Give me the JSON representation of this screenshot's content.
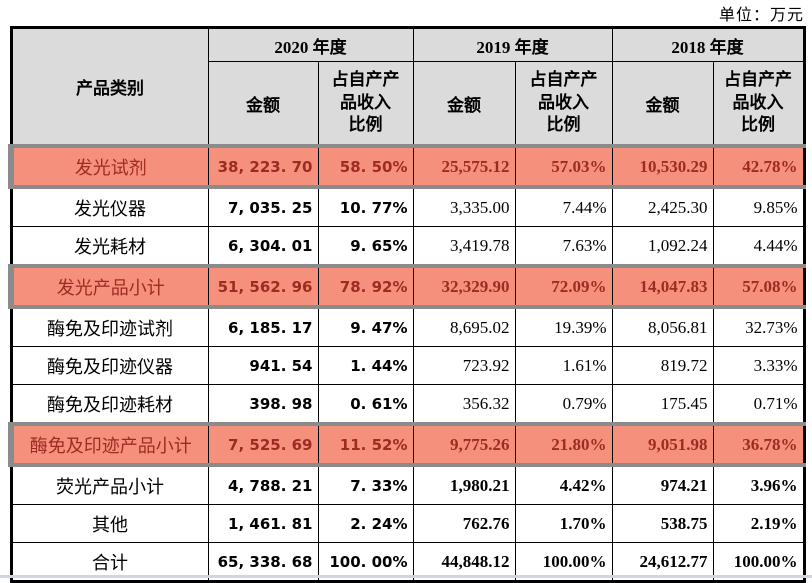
{
  "page": {
    "unit_label": "单位：万元"
  },
  "colors": {
    "header_bg": "#dbdbdb",
    "highlight_bg": "#f5907c",
    "highlight_text": "#9e2b23",
    "highlight_border": "#8b8b8b",
    "table_border": "#000000"
  },
  "table": {
    "header": {
      "category": "产品类别",
      "years": [
        "2020 年度",
        "2019 年度",
        "2018 年度"
      ],
      "amount_label": "金额",
      "ratio_label": "占自产产\n品收入\n比例"
    },
    "rows": [
      {
        "category": "发光试剂",
        "y2020_amount": "38, 223. 70",
        "y2020_ratio": "58. 50%",
        "y2019_amount": "25,575.12",
        "y2019_ratio": "57.03%",
        "y2018_amount": "10,530.29",
        "y2018_ratio": "42.78%",
        "highlight": true,
        "bold": false
      },
      {
        "category": "发光仪器",
        "y2020_amount": "7, 035. 25",
        "y2020_ratio": "10. 77%",
        "y2019_amount": "3,335.00",
        "y2019_ratio": "7.44%",
        "y2018_amount": "2,425.30",
        "y2018_ratio": "9.85%",
        "highlight": false,
        "bold": false
      },
      {
        "category": "发光耗材",
        "y2020_amount": "6, 304. 01",
        "y2020_ratio": "9. 65%",
        "y2019_amount": "3,419.78",
        "y2019_ratio": "7.63%",
        "y2018_amount": "1,092.24",
        "y2018_ratio": "4.44%",
        "highlight": false,
        "bold": false
      },
      {
        "category": "发光产品小计",
        "y2020_amount": "51, 562. 96",
        "y2020_ratio": "78. 92%",
        "y2019_amount": "32,329.90",
        "y2019_ratio": "72.09%",
        "y2018_amount": "14,047.83",
        "y2018_ratio": "57.08%",
        "highlight": true,
        "bold": true
      },
      {
        "category": "酶免及印迹试剂",
        "y2020_amount": "6, 185. 17",
        "y2020_ratio": "9. 47%",
        "y2019_amount": "8,695.02",
        "y2019_ratio": "19.39%",
        "y2018_amount": "8,056.81",
        "y2018_ratio": "32.73%",
        "highlight": false,
        "bold": false
      },
      {
        "category": "酶免及印迹仪器",
        "y2020_amount": "941. 54",
        "y2020_ratio": "1. 44%",
        "y2019_amount": "723.92",
        "y2019_ratio": "1.61%",
        "y2018_amount": "819.72",
        "y2018_ratio": "3.33%",
        "highlight": false,
        "bold": false
      },
      {
        "category": "酶免及印迹耗材",
        "y2020_amount": "398. 98",
        "y2020_ratio": "0. 61%",
        "y2019_amount": "356.32",
        "y2019_ratio": "0.79%",
        "y2018_amount": "175.45",
        "y2018_ratio": "0.71%",
        "highlight": false,
        "bold": false
      },
      {
        "category": "酶免及印迹产品小计",
        "y2020_amount": "7, 525. 69",
        "y2020_ratio": "11. 52%",
        "y2019_amount": "9,775.26",
        "y2019_ratio": "21.80%",
        "y2018_amount": "9,051.98",
        "y2018_ratio": "36.78%",
        "highlight": true,
        "bold": true
      },
      {
        "category": "荧光产品小计",
        "y2020_amount": "4, 788. 21",
        "y2020_ratio": "7. 33%",
        "y2019_amount": "1,980.21",
        "y2019_ratio": "4.42%",
        "y2018_amount": "974.21",
        "y2018_ratio": "3.96%",
        "highlight": false,
        "bold": true
      },
      {
        "category": "其他",
        "y2020_amount": "1, 461. 81",
        "y2020_ratio": "2. 24%",
        "y2019_amount": "762.76",
        "y2019_ratio": "1.70%",
        "y2018_amount": "538.75",
        "y2018_ratio": "2.19%",
        "highlight": false,
        "bold": true
      },
      {
        "category": "合计",
        "y2020_amount": "65, 338. 68",
        "y2020_ratio": "100. 00%",
        "y2019_amount": "44,848.12",
        "y2019_ratio": "100.00%",
        "y2018_amount": "24,612.77",
        "y2018_ratio": "100.00%",
        "highlight": false,
        "bold": true
      }
    ]
  }
}
